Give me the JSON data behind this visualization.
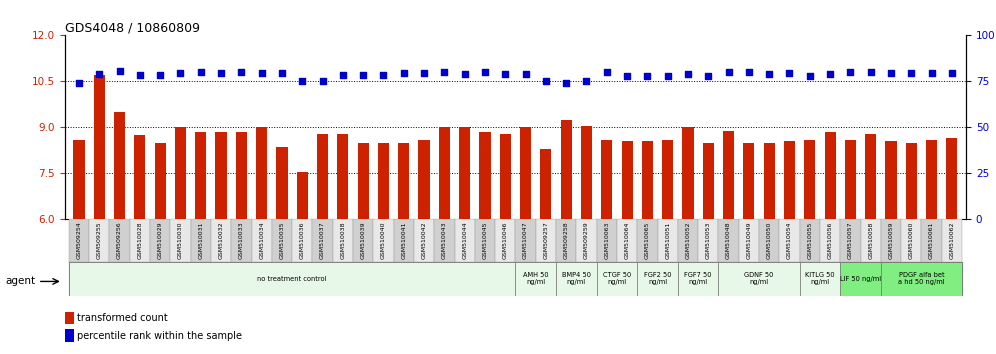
{
  "title": "GDS4048 / 10860809",
  "samples": [
    "GSM509254",
    "GSM509255",
    "GSM509256",
    "GSM510028",
    "GSM510029",
    "GSM510030",
    "GSM510031",
    "GSM510032",
    "GSM510033",
    "GSM510034",
    "GSM510035",
    "GSM510036",
    "GSM510037",
    "GSM510038",
    "GSM510039",
    "GSM510040",
    "GSM510041",
    "GSM510042",
    "GSM510043",
    "GSM510044",
    "GSM510045",
    "GSM510046",
    "GSM510047",
    "GSM509257",
    "GSM509258",
    "GSM509259",
    "GSM510063",
    "GSM510064",
    "GSM510065",
    "GSM510051",
    "GSM510052",
    "GSM510053",
    "GSM510048",
    "GSM510049",
    "GSM510050",
    "GSM510054",
    "GSM510055",
    "GSM510056",
    "GSM510057",
    "GSM510058",
    "GSM510059",
    "GSM510060",
    "GSM510061",
    "GSM510062"
  ],
  "bar_values": [
    8.6,
    10.7,
    9.5,
    8.75,
    8.5,
    9.0,
    8.85,
    8.85,
    8.85,
    9.0,
    8.35,
    7.55,
    8.8,
    8.8,
    8.5,
    8.5,
    8.5,
    8.6,
    9.0,
    9.0,
    8.85,
    8.8,
    9.0,
    8.3,
    9.25,
    9.05,
    8.6,
    8.55,
    8.55,
    8.6,
    9.0,
    8.5,
    8.9,
    8.5,
    8.5,
    8.55,
    8.6,
    8.85,
    8.6,
    8.8,
    8.55,
    8.5,
    8.6,
    8.65
  ],
  "scatter_values": [
    10.45,
    10.75,
    10.85,
    10.72,
    10.72,
    10.76,
    10.8,
    10.78,
    10.8,
    10.78,
    10.78,
    10.5,
    10.5,
    10.72,
    10.72,
    10.7,
    10.76,
    10.76,
    10.82,
    10.75,
    10.82,
    10.74,
    10.74,
    10.5,
    10.45,
    10.52,
    10.8,
    10.68,
    10.68,
    10.68,
    10.74,
    10.68,
    10.82,
    10.8,
    10.74,
    10.78,
    10.68,
    10.75,
    10.8,
    10.8,
    10.78,
    10.76,
    10.76,
    10.78
  ],
  "ylim_left": [
    6,
    12
  ],
  "ylim_right": [
    0,
    100
  ],
  "yticks_left": [
    6,
    7.5,
    9,
    10.5,
    12
  ],
  "yticks_right": [
    0,
    25,
    50,
    75,
    100
  ],
  "bar_color": "#cc2200",
  "scatter_color": "#0000cc",
  "grid_lines": [
    7.5,
    9.0,
    10.5
  ],
  "agent_groups": [
    {
      "label": "no treatment control",
      "start": 0,
      "end": 22,
      "color": "#e8f8e8"
    },
    {
      "label": "AMH 50\nng/ml",
      "start": 22,
      "end": 24,
      "color": "#e8f8e8"
    },
    {
      "label": "BMP4 50\nng/ml",
      "start": 24,
      "end": 26,
      "color": "#e8f8e8"
    },
    {
      "label": "CTGF 50\nng/ml",
      "start": 26,
      "end": 28,
      "color": "#e8f8e8"
    },
    {
      "label": "FGF2 50\nng/ml",
      "start": 28,
      "end": 30,
      "color": "#e8f8e8"
    },
    {
      "label": "FGF7 50\nng/ml",
      "start": 30,
      "end": 32,
      "color": "#e8f8e8"
    },
    {
      "label": "GDNF 50\nng/ml",
      "start": 32,
      "end": 36,
      "color": "#e8f8e8"
    },
    {
      "label": "KITLG 50\nng/ml",
      "start": 36,
      "end": 38,
      "color": "#e8f8e8"
    },
    {
      "label": "LIF 50 ng/ml",
      "start": 38,
      "end": 40,
      "color": "#80ee80"
    },
    {
      "label": "PDGF alfa bet\na hd 50 ng/ml",
      "start": 40,
      "end": 44,
      "color": "#80ee80"
    }
  ],
  "legend_bar_label": "transformed count",
  "legend_scatter_label": "percentile rank within the sample",
  "agent_label": "agent"
}
